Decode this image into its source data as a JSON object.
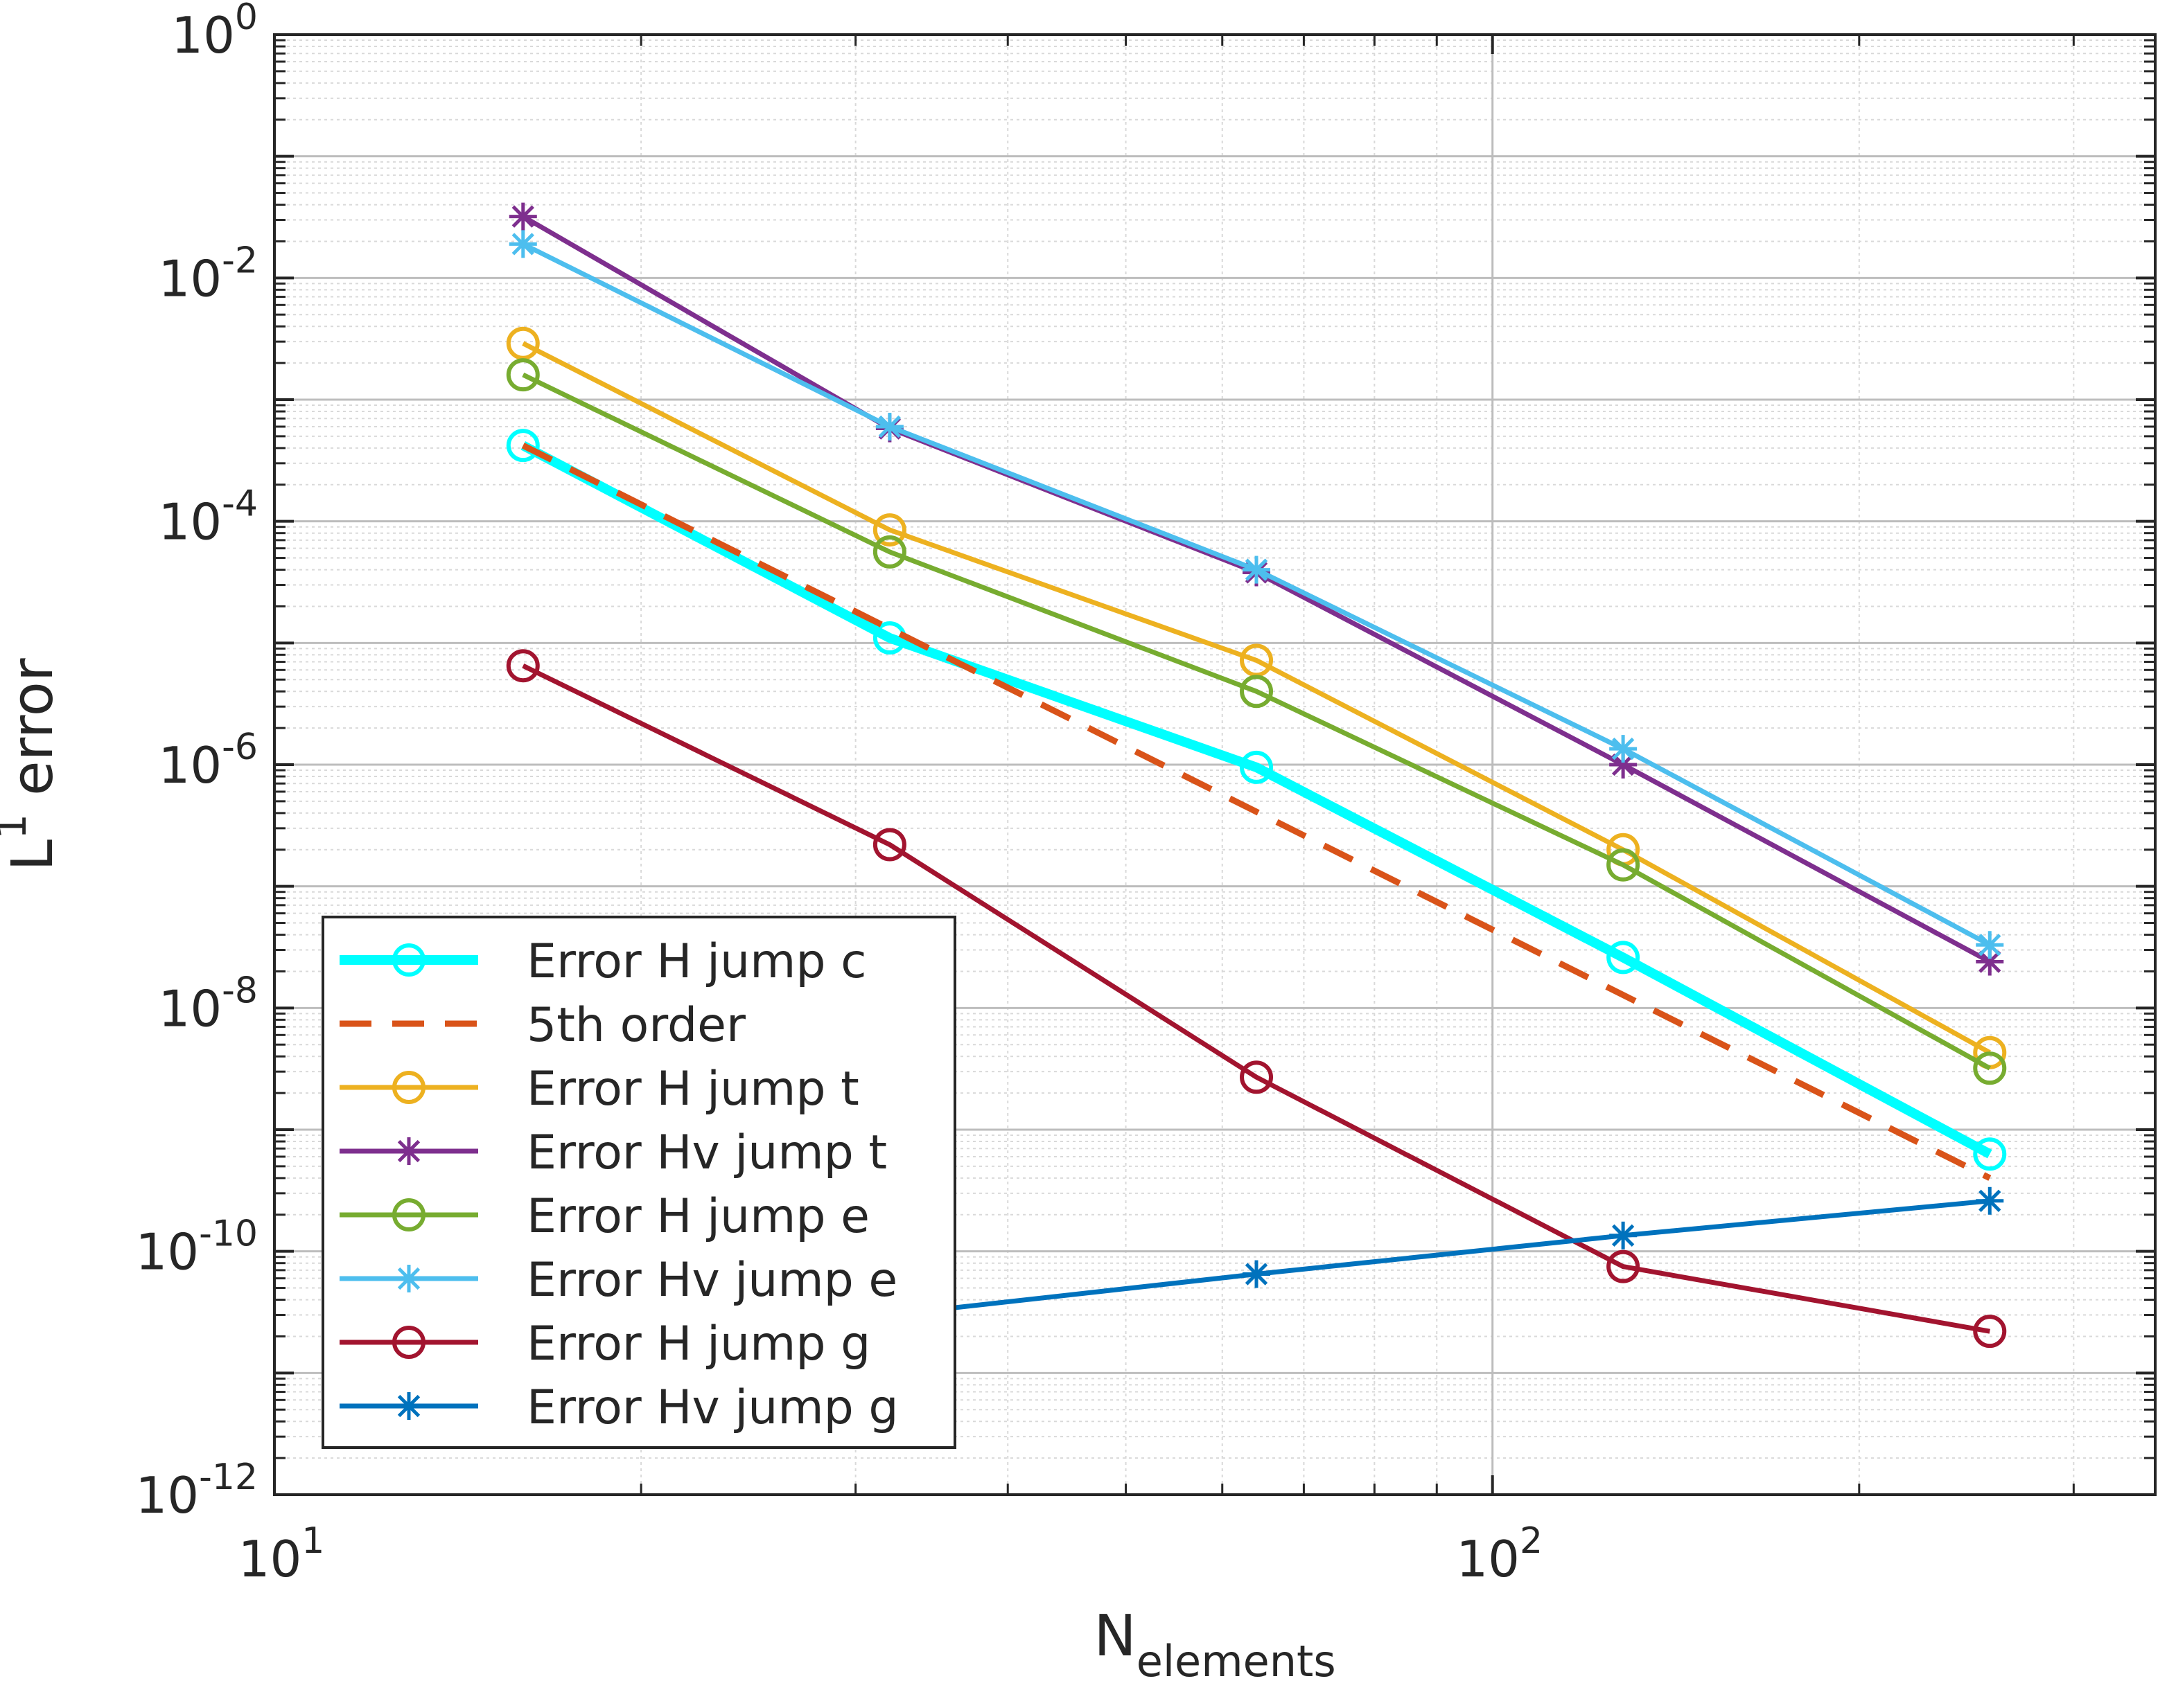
{
  "chart_data": {
    "type": "line",
    "title": "",
    "xlabel": {
      "base": "N",
      "sub": "elements"
    },
    "ylabel": {
      "base": "L",
      "sup": "1",
      "rest": " error"
    },
    "xscale": "log",
    "yscale": "log",
    "xlim": [
      10,
      350
    ],
    "ylim": [
      1e-12,
      1
    ],
    "grid": true,
    "minor_grid": true,
    "legend_position": "bottom-left",
    "x_ticks": [
      {
        "value": 10,
        "base": "10",
        "exp": "1"
      },
      {
        "value": 100,
        "base": "10",
        "exp": "2"
      }
    ],
    "y_ticks": [
      {
        "value": 1,
        "base": "10",
        "exp": "0"
      },
      {
        "value": 0.01,
        "base": "10",
        "exp": "-2"
      },
      {
        "value": 0.0001,
        "base": "10",
        "exp": "-4"
      },
      {
        "value": 1e-06,
        "base": "10",
        "exp": "-6"
      },
      {
        "value": 1e-08,
        "base": "10",
        "exp": "-8"
      },
      {
        "value": 1e-10,
        "base": "10",
        "exp": "-10"
      },
      {
        "value": 1e-12,
        "base": "10",
        "exp": "-12"
      }
    ],
    "series": [
      {
        "name": "Error H jump c",
        "color": "#00ffff",
        "marker": "circle",
        "dashed": false,
        "bold": true,
        "x": [
          16,
          32,
          64,
          128,
          256
        ],
        "y": [
          0.00042,
          1.1e-05,
          9.5e-07,
          2.6e-08,
          6.3e-10
        ]
      },
      {
        "name": "5th order",
        "color": "#d95319",
        "marker": "none",
        "dashed": true,
        "bold": false,
        "x": [
          16,
          32,
          64,
          128,
          256
        ],
        "y": [
          0.00042,
          1.31e-05,
          4.1e-07,
          1.28e-08,
          4e-10
        ]
      },
      {
        "name": "Error H jump t",
        "color": "#edb120",
        "marker": "circle",
        "dashed": false,
        "bold": false,
        "x": [
          16,
          32,
          64,
          128,
          256
        ],
        "y": [
          0.0029,
          8.5e-05,
          7.2e-06,
          2e-07,
          4.3e-09
        ]
      },
      {
        "name": "Error Hv jump t",
        "color": "#7e2f8e",
        "marker": "star",
        "dashed": false,
        "bold": false,
        "x": [
          16,
          32,
          64,
          128,
          256
        ],
        "y": [
          0.032,
          0.00058,
          3.8e-05,
          1e-06,
          2.4e-08
        ]
      },
      {
        "name": "Error H jump e",
        "color": "#77ac30",
        "marker": "circle",
        "dashed": false,
        "bold": false,
        "x": [
          16,
          32,
          64,
          128,
          256
        ],
        "y": [
          0.0016,
          5.6e-05,
          4e-06,
          1.5e-07,
          3.2e-09
        ]
      },
      {
        "name": "Error Hv jump e",
        "color": "#4dbeee",
        "marker": "star",
        "dashed": false,
        "bold": false,
        "x": [
          16,
          32,
          64,
          128,
          256
        ],
        "y": [
          0.019,
          0.0006,
          4e-05,
          1.35e-06,
          3.3e-08
        ]
      },
      {
        "name": "Error H jump g",
        "color": "#a2142f",
        "marker": "circle",
        "dashed": false,
        "bold": false,
        "x": [
          16,
          32,
          64,
          128,
          256
        ],
        "y": [
          6.5e-06,
          2.2e-07,
          2.7e-09,
          7.5e-11,
          2.2e-11
        ]
      },
      {
        "name": "Error Hv jump g",
        "color": "#0072bd",
        "marker": "star",
        "dashed": false,
        "bold": false,
        "x": [
          16,
          32,
          64,
          128,
          256
        ],
        "y": [
          1e-11,
          3e-11,
          6.5e-11,
          1.35e-10,
          2.6e-10
        ]
      }
    ]
  }
}
